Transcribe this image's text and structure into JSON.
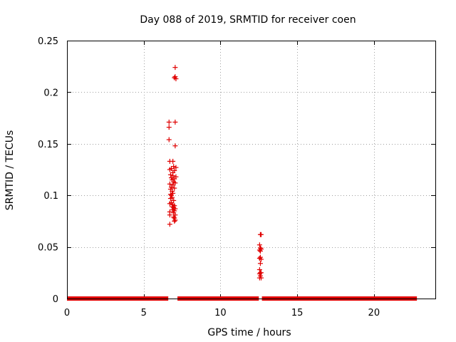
{
  "chart_data": {
    "type": "scatter",
    "title": "Day 088 of 2019, SRMTID for receiver coen",
    "xlabel": "GPS time / hours",
    "ylabel": "SRMTID / TECUs",
    "xlim": [
      0,
      24
    ],
    "ylim": [
      0,
      0.25
    ],
    "xticks": [
      0,
      5,
      10,
      15,
      20
    ],
    "xtick_labels": [
      "0",
      "5",
      "10",
      "15",
      "20"
    ],
    "yticks": [
      0,
      0.05,
      0.1,
      0.15,
      0.2,
      0.25
    ],
    "ytick_labels": [
      "0",
      "0.05",
      "0.1",
      "0.15",
      "0.2",
      "0.25"
    ],
    "grid": true,
    "series": [
      {
        "name": "SRMTID",
        "color": "#e00000",
        "marker": "plus",
        "baseline_segments": [
          [
            0,
            6.6
          ],
          [
            7.2,
            12.5
          ],
          [
            12.7,
            22.8
          ]
        ],
        "points": [
          [
            7.05,
            0.224
          ],
          [
            7.05,
            0.215
          ],
          [
            7.1,
            0.213
          ],
          [
            7.0,
            0.214
          ],
          [
            7.05,
            0.171
          ],
          [
            6.65,
            0.171
          ],
          [
            6.65,
            0.166
          ],
          [
            6.65,
            0.154
          ],
          [
            7.05,
            0.148
          ],
          [
            6.7,
            0.133
          ],
          [
            6.9,
            0.133
          ],
          [
            6.95,
            0.128
          ],
          [
            7.1,
            0.127
          ],
          [
            6.8,
            0.126
          ],
          [
            6.7,
            0.125
          ],
          [
            7.0,
            0.124
          ],
          [
            6.9,
            0.122
          ],
          [
            6.75,
            0.12
          ],
          [
            6.9,
            0.119
          ],
          [
            7.1,
            0.118
          ],
          [
            6.8,
            0.117
          ],
          [
            7.0,
            0.116
          ],
          [
            6.85,
            0.115
          ],
          [
            6.95,
            0.113
          ],
          [
            7.05,
            0.112
          ],
          [
            6.7,
            0.111
          ],
          [
            6.9,
            0.11
          ],
          [
            6.8,
            0.108
          ],
          [
            7.0,
            0.107
          ],
          [
            6.75,
            0.106
          ],
          [
            6.85,
            0.104
          ],
          [
            6.9,
            0.102
          ],
          [
            6.75,
            0.101
          ],
          [
            6.8,
            0.1
          ],
          [
            6.85,
            0.098
          ],
          [
            6.75,
            0.097
          ],
          [
            6.95,
            0.095
          ],
          [
            6.8,
            0.093
          ],
          [
            6.7,
            0.092
          ],
          [
            6.9,
            0.091
          ],
          [
            7.0,
            0.09
          ],
          [
            6.85,
            0.089
          ],
          [
            6.95,
            0.088
          ],
          [
            7.05,
            0.087
          ],
          [
            6.9,
            0.086
          ],
          [
            7.0,
            0.085
          ],
          [
            6.7,
            0.084
          ],
          [
            6.95,
            0.083
          ],
          [
            7.05,
            0.081
          ],
          [
            6.7,
            0.081
          ],
          [
            6.95,
            0.079
          ],
          [
            7.0,
            0.078
          ],
          [
            7.05,
            0.076
          ],
          [
            7.0,
            0.075
          ],
          [
            6.7,
            0.072
          ],
          [
            12.6,
            0.062
          ],
          [
            12.65,
            0.062
          ],
          [
            12.55,
            0.052
          ],
          [
            12.6,
            0.049
          ],
          [
            12.65,
            0.048
          ],
          [
            12.55,
            0.047
          ],
          [
            12.6,
            0.046
          ],
          [
            12.6,
            0.04
          ],
          [
            12.55,
            0.039
          ],
          [
            12.65,
            0.038
          ],
          [
            12.6,
            0.034
          ],
          [
            12.55,
            0.028
          ],
          [
            12.6,
            0.025
          ],
          [
            12.65,
            0.025
          ],
          [
            12.55,
            0.024
          ],
          [
            12.6,
            0.022
          ],
          [
            12.55,
            0.02
          ],
          [
            12.65,
            0.02
          ]
        ]
      }
    ]
  }
}
